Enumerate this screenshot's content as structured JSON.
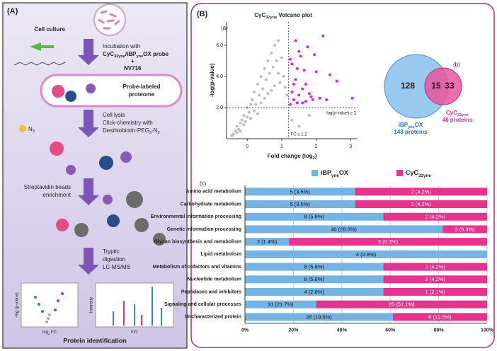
{
  "panel_a": {
    "label": "(A)",
    "cell_culture": "Cell culture",
    "incubation": "Incubation with",
    "probe": [
      "CyC",
      "32yne",
      "/iBP",
      "yne",
      "OX probe"
    ],
    "plus": "+",
    "nv": "NV716",
    "proteome_1": "Probe-labeled",
    "proteome_2": "proteome",
    "azide": [
      "N",
      "3"
    ],
    "lysis": "Cell lysis",
    "click": "Click-chemistry with",
    "desthio": [
      "Desthiobiotin-PEG",
      "3",
      "-N",
      "3"
    ],
    "strep_1": "Streptavidin beads",
    "strep_2": "enrichment",
    "tryptic_1": "Tryptic",
    "tryptic_2": "digestion",
    "lcms": "LC-MS/MS",
    "mini_ylabel": "-log (p-value)",
    "mini_xlabel": [
      "log",
      "2",
      " FC"
    ],
    "mini_intensity": "Intensity",
    "mini_mz": "m/z",
    "final": "Protein identification"
  },
  "panel_b_label": "(B)",
  "chart_data": [
    {
      "type": "scatter",
      "panel": "(a)",
      "title": [
        "CyC",
        "32yne",
        " Volcano plot"
      ],
      "xlabel": [
        "Fold change (log",
        "2",
        ")"
      ],
      "ylabel": "-log(p-value)",
      "xlim": [
        -0.6,
        3.2
      ],
      "ylim": [
        0,
        7.5
      ],
      "xticks": [
        0,
        1,
        2,
        3
      ],
      "yticks": [
        {
          "value": 2,
          "label": "2.0"
        },
        {
          "value": 4,
          "label": "4.0"
        },
        {
          "value": 6,
          "label": "6.0"
        }
      ],
      "thresholds": {
        "x": 1.2,
        "x_label": "FC ≥ 1.2",
        "y": 2,
        "y_label": "-log(p-value) ≥ 2"
      },
      "series": [
        {
          "color": "#bdbdbd",
          "x": [
            -0.45,
            -0.4,
            -0.35,
            -0.3,
            -0.3,
            -0.25,
            -0.2,
            -0.2,
            -0.15,
            -0.1,
            -0.1,
            -0.05,
            0,
            0,
            0.05,
            0.1,
            0.1,
            0.15,
            0.2,
            0.2,
            0.25,
            0.3,
            0.3,
            0.35,
            0.4,
            0.4,
            0.45,
            0.5,
            0.5,
            0.55,
            0.6,
            0.6,
            0.65,
            0.7,
            0.7,
            0.75,
            0.8,
            0.8,
            0.85,
            0.9,
            0.9,
            0.95,
            1.0,
            1.05,
            1.1,
            1.15,
            1.3,
            1.5,
            1.8
          ],
          "values": [
            0.2,
            0.3,
            0.5,
            0.4,
            0.8,
            0.6,
            1.0,
            0.5,
            1.2,
            0.9,
            1.5,
            1.1,
            1.4,
            2.0,
            1.7,
            2.2,
            1.3,
            2.5,
            1.8,
            3.0,
            2.2,
            3.5,
            1.6,
            2.8,
            4.0,
            2.3,
            3.2,
            4.5,
            2.6,
            3.8,
            5.0,
            2.9,
            4.2,
            5.5,
            3.1,
            4.6,
            6.0,
            3.4,
            5.0,
            4.2,
            6.3,
            3.6,
            5.2,
            4.0,
            3.3,
            2.8,
            1.2,
            0.8,
            1.5
          ]
        },
        {
          "color": "#e61ee6",
          "x": [
            1.25,
            1.3,
            1.35,
            1.4,
            1.45,
            1.5,
            1.55,
            1.6,
            1.7,
            1.75,
            1.8,
            1.9,
            2.0,
            2.1,
            2.2,
            2.4,
            2.6,
            3.05,
            1.3,
            1.4,
            1.5,
            1.6,
            1.7,
            1.85,
            1.25,
            1.45,
            2.3,
            1.35,
            1.65,
            1.95
          ],
          "values": [
            2.2,
            3.0,
            2.5,
            6.3,
            4.5,
            2.8,
            5.3,
            2.3,
            3.5,
            5.9,
            2.9,
            2.5,
            4.3,
            2.6,
            6.6,
            4.1,
            3.7,
            2.6,
            4.8,
            3.8,
            5.6,
            3.2,
            2.4,
            2.7,
            5.1,
            2.3,
            2.5,
            3.5,
            4.4,
            5.4
          ]
        }
      ]
    },
    {
      "type": "venn",
      "panel": "(b)",
      "sets": [
        {
          "name": [
            "iBP",
            "yne",
            "OX"
          ],
          "size": 143,
          "size_label": "143 proteins",
          "color": "#8ec3ec",
          "text_color": "#2f6fc0"
        },
        {
          "name": [
            "CyC",
            "32yne"
          ],
          "size": 48,
          "size_label": "48 proteins",
          "color": "#e8559f",
          "text_color": "#e0308a"
        }
      ],
      "values": [
        128,
        15,
        33
      ]
    },
    {
      "type": "stacked_barh",
      "panel": "(c)",
      "categories": [
        "Amino acid metabolism",
        "Carbohydrate metabolism",
        "Environmental information processing",
        "Genetic information processing",
        "Glycan biosynthesis and metabolism",
        "Lipid metabolism",
        "Metabolism of cofactors and vitamins",
        "Nucleotide metabolism",
        "Peptidases and inhibitors",
        "Signaling and cellular processes",
        "Uncharacterized protein"
      ],
      "series": [
        {
          "name": [
            "iBP",
            "yne",
            "OX"
          ],
          "color": "#74b3e2",
          "values": [
            3.5,
            3.5,
            5.6,
            28.0,
            1.4,
            2.8,
            5.6,
            5.6,
            2.8,
            21.7,
            19.6
          ],
          "value_labels": [
            "5 (3.5%)",
            "5 (3.5%)",
            "8 (5.6%)",
            "40 (28.0%)",
            "2 (1.4%)",
            "4 (2.8%)",
            "8 (5.6%)",
            "8 (5.6%)",
            "4 (2.8%)",
            "31 (21.7%)",
            "28 (19.6%)"
          ]
        },
        {
          "name": [
            "CyC",
            "32yne"
          ],
          "color": "#e6338c",
          "values": [
            4.2,
            4.2,
            4.2,
            6.3,
            6.3,
            0,
            4.2,
            4.2,
            2.1,
            52.1,
            12.5
          ],
          "value_labels": [
            "2 (4.2%)",
            "2 (4.2%)",
            "2 (4.2%)",
            "3 (6.3%)",
            "3 (6.3%)",
            null,
            "2 (4.2%)",
            "2 (4.2%)",
            "1 (2.1%)",
            "25 (52.1%)",
            "6 (12.5%)"
          ]
        }
      ],
      "xlim": [
        0,
        100
      ],
      "xticks": [
        {
          "value": 0,
          "label": "0%"
        },
        {
          "value": 20,
          "label": "20%"
        },
        {
          "value": 40,
          "label": "40%"
        },
        {
          "value": 60,
          "label": "60%"
        },
        {
          "value": 80,
          "label": "80%"
        },
        {
          "value": 100,
          "label": "100%"
        }
      ]
    }
  ]
}
